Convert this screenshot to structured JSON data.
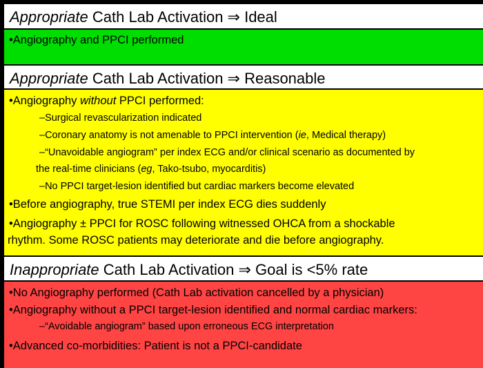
{
  "sections": [
    {
      "header": {
        "em": "Appropriate",
        "rest": " Cath Lab Activation ⇒ Ideal"
      },
      "color": "#00dd00",
      "items": [
        {
          "level": 1,
          "text": "•Angiography and PPCI performed"
        }
      ]
    },
    {
      "header": {
        "em": "Appropriate",
        "rest": " Cath Lab Activation ⇒ Reasonable"
      },
      "color": "#ffff00",
      "items": [
        {
          "level": 1,
          "a": "•Angiography ",
          "em": "without",
          "b": " PPCI performed:"
        },
        {
          "level": 2,
          "text": "–Surgical revascularization indicated"
        },
        {
          "level": 2,
          "a": "–Coronary anatomy is not amenable to PPCI intervention (",
          "em": "ie",
          "b": ", Medical therapy)"
        },
        {
          "level": 2,
          "a": "–“Unavoidable angiogram” per index ECG and/or clinical scenario as documented by",
          "a2": "the real-time clinicians (",
          "em": "eg",
          "b": ", Tako-tsubo, myocarditis)"
        },
        {
          "level": 2,
          "text": "–No PPCI target-lesion identified but cardiac markers become elevated"
        },
        {
          "level": 1,
          "text": "•Before angiography, true STEMI per index ECG dies suddenly"
        },
        {
          "level": 1,
          "text": "•Angiography ± PPCI for ROSC following witnessed OHCA from a shockable",
          "text2": "rhythm. Some ROSC patients may deteriorate and die before angiography."
        }
      ]
    },
    {
      "header": {
        "em": "Inappropriate",
        "rest": " Cath Lab Activation ⇒ Goal is <5% rate"
      },
      "color": "#ff4444",
      "items": [
        {
          "level": 1,
          "text": "•No Angiography performed (Cath Lab activation cancelled by a physician)"
        },
        {
          "level": 1,
          "text": "•Angiography without a PPCI target-lesion identified and normal cardiac markers:"
        },
        {
          "level": 2,
          "text": "–“Avoidable angiogram” based upon erroneous ECG interpretation"
        },
        {
          "level": 1,
          "text": "•Advanced co-morbidities: Patient is not a PPCI-candidate"
        }
      ]
    }
  ]
}
